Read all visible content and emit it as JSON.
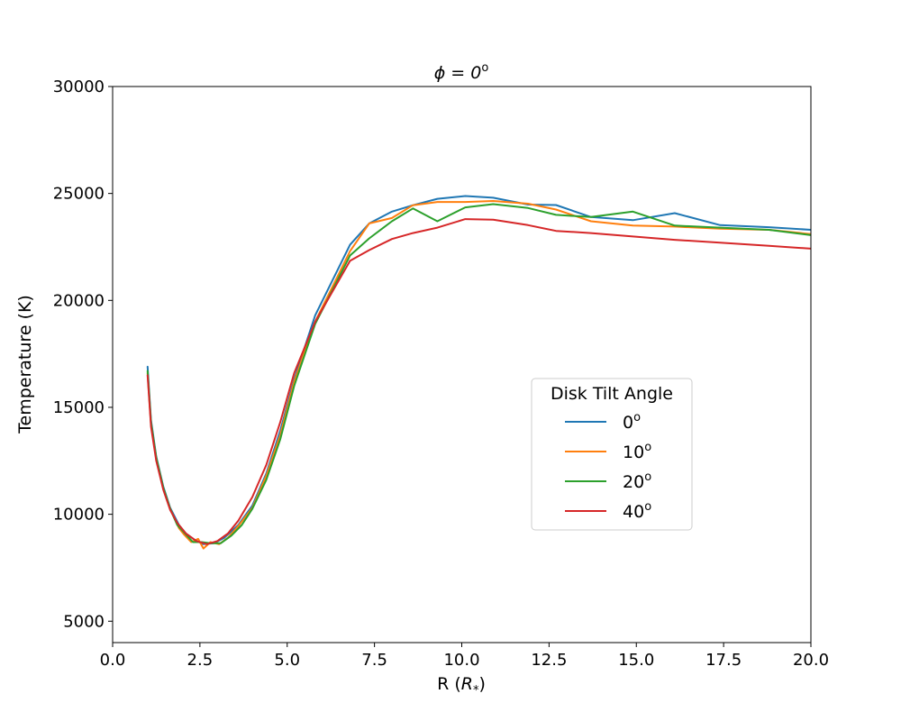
{
  "chart_data": {
    "type": "line",
    "title": "ϕ = 0",
    "title_sup": "o",
    "xlabel": "R (",
    "xlabel_sym": "R",
    "xlabel_sub": "*",
    "xlabel_end": ")",
    "ylabel": "Temperature (K)",
    "xlim": [
      0,
      20
    ],
    "ylim": [
      4000,
      30000
    ],
    "xticks": [
      0,
      2.5,
      5,
      7.5,
      10,
      12.5,
      15,
      17.5,
      20
    ],
    "xtick_labels": [
      "0.0",
      "2.5",
      "5.0",
      "7.5",
      "10.0",
      "12.5",
      "15.0",
      "17.5",
      "20.0"
    ],
    "yticks": [
      5000,
      10000,
      15000,
      20000,
      25000,
      30000
    ],
    "ytick_labels": [
      "5000",
      "10000",
      "15000",
      "20000",
      "25000",
      "30000"
    ],
    "legend": {
      "title": "Disk Tilt Angle",
      "position": "center-right"
    },
    "series": [
      {
        "name": "0",
        "sup": "o",
        "color": "#1f77b4",
        "points": [
          [
            1.0,
            16900
          ],
          [
            1.1,
            14400
          ],
          [
            1.25,
            12700
          ],
          [
            1.45,
            11300
          ],
          [
            1.65,
            10300
          ],
          [
            1.9,
            9500
          ],
          [
            2.1,
            9100
          ],
          [
            2.35,
            8800
          ],
          [
            2.6,
            8600
          ],
          [
            2.9,
            8650
          ],
          [
            3.2,
            8900
          ],
          [
            3.6,
            9500
          ],
          [
            4.0,
            10400
          ],
          [
            4.4,
            11900
          ],
          [
            4.8,
            13900
          ],
          [
            5.2,
            16300
          ],
          [
            5.8,
            19300
          ],
          [
            6.8,
            22600
          ],
          [
            7.35,
            23600
          ],
          [
            8.0,
            24150
          ],
          [
            8.6,
            24450
          ],
          [
            9.3,
            24750
          ],
          [
            10.1,
            24880
          ],
          [
            10.9,
            24800
          ],
          [
            11.9,
            24480
          ],
          [
            12.7,
            24460
          ],
          [
            13.7,
            23900
          ],
          [
            14.9,
            23750
          ],
          [
            16.1,
            24080
          ],
          [
            17.4,
            23520
          ],
          [
            18.8,
            23420
          ],
          [
            20.0,
            23300
          ]
        ]
      },
      {
        "name": "10",
        "sup": "o",
        "color": "#ff7f0e",
        "points": [
          [
            1.0,
            16600
          ],
          [
            1.1,
            14200
          ],
          [
            1.25,
            12600
          ],
          [
            1.45,
            11200
          ],
          [
            1.65,
            10250
          ],
          [
            1.9,
            9350
          ],
          [
            2.05,
            9050
          ],
          [
            2.25,
            8700
          ],
          [
            2.45,
            8850
          ],
          [
            2.6,
            8400
          ],
          [
            2.8,
            8700
          ],
          [
            3.05,
            8600
          ],
          [
            3.3,
            8900
          ],
          [
            3.6,
            9450
          ],
          [
            4.0,
            10300
          ],
          [
            4.4,
            11800
          ],
          [
            4.8,
            13700
          ],
          [
            5.2,
            16200
          ],
          [
            5.8,
            19000
          ],
          [
            6.8,
            22300
          ],
          [
            7.35,
            23600
          ],
          [
            8.0,
            23850
          ],
          [
            8.6,
            24450
          ],
          [
            9.3,
            24600
          ],
          [
            10.1,
            24600
          ],
          [
            10.9,
            24650
          ],
          [
            11.9,
            24520
          ],
          [
            12.7,
            24250
          ],
          [
            13.7,
            23700
          ],
          [
            14.9,
            23500
          ],
          [
            16.1,
            23450
          ],
          [
            17.4,
            23350
          ],
          [
            18.8,
            23300
          ],
          [
            20.0,
            23100
          ]
        ]
      },
      {
        "name": "20",
        "sup": "o",
        "color": "#2ca02c",
        "points": [
          [
            1.0,
            16700
          ],
          [
            1.1,
            14300
          ],
          [
            1.25,
            12650
          ],
          [
            1.45,
            11250
          ],
          [
            1.65,
            10250
          ],
          [
            1.85,
            9500
          ],
          [
            2.05,
            9150
          ],
          [
            2.3,
            8700
          ],
          [
            2.55,
            8700
          ],
          [
            2.8,
            8650
          ],
          [
            3.1,
            8650
          ],
          [
            3.4,
            9000
          ],
          [
            3.7,
            9500
          ],
          [
            4.0,
            10250
          ],
          [
            4.4,
            11600
          ],
          [
            4.8,
            13500
          ],
          [
            5.2,
            16000
          ],
          [
            5.8,
            18900
          ],
          [
            6.8,
            22100
          ],
          [
            7.35,
            22900
          ],
          [
            8.0,
            23700
          ],
          [
            8.6,
            24300
          ],
          [
            9.3,
            23700
          ],
          [
            10.1,
            24350
          ],
          [
            10.9,
            24500
          ],
          [
            11.9,
            24320
          ],
          [
            12.7,
            24000
          ],
          [
            13.7,
            23900
          ],
          [
            14.9,
            24150
          ],
          [
            16.1,
            23500
          ],
          [
            17.4,
            23400
          ],
          [
            18.8,
            23300
          ],
          [
            20.0,
            23050
          ]
        ]
      },
      {
        "name": "40",
        "sup": "o",
        "color": "#d62728",
        "points": [
          [
            1.0,
            16500
          ],
          [
            1.1,
            14100
          ],
          [
            1.25,
            12500
          ],
          [
            1.45,
            11150
          ],
          [
            1.65,
            10200
          ],
          [
            1.85,
            9600
          ],
          [
            2.1,
            9100
          ],
          [
            2.4,
            8750
          ],
          [
            2.7,
            8600
          ],
          [
            3.0,
            8750
          ],
          [
            3.3,
            9100
          ],
          [
            3.6,
            9700
          ],
          [
            4.0,
            10800
          ],
          [
            4.4,
            12300
          ],
          [
            4.8,
            14300
          ],
          [
            5.2,
            16600
          ],
          [
            5.8,
            19000
          ],
          [
            6.8,
            21850
          ],
          [
            7.35,
            22350
          ],
          [
            8.0,
            22870
          ],
          [
            8.6,
            23150
          ],
          [
            9.3,
            23400
          ],
          [
            10.1,
            23800
          ],
          [
            10.9,
            23770
          ],
          [
            11.9,
            23520
          ],
          [
            12.7,
            23250
          ],
          [
            13.7,
            23150
          ],
          [
            14.9,
            22990
          ],
          [
            16.1,
            22830
          ],
          [
            17.4,
            22700
          ],
          [
            18.8,
            22550
          ],
          [
            20.0,
            22420
          ]
        ]
      }
    ]
  }
}
